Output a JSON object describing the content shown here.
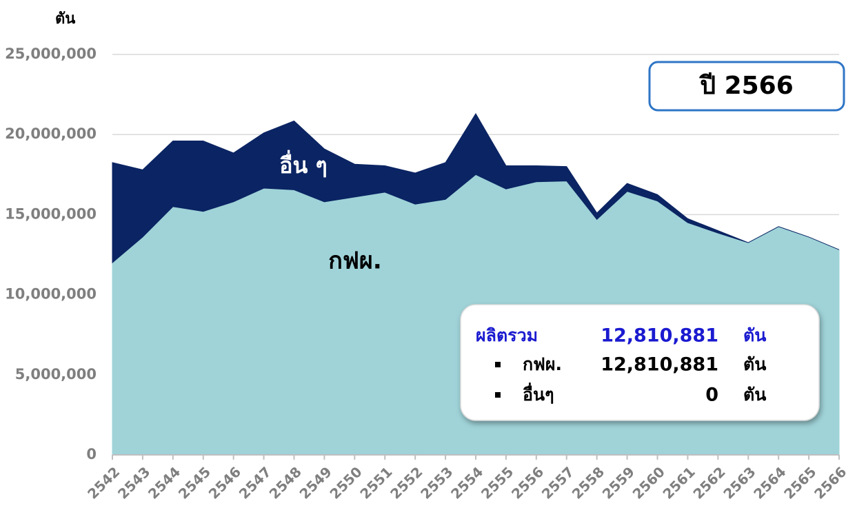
{
  "chart_data": {
    "type": "stacked_area",
    "y_axis_label": "ตัน",
    "categories": [
      "2542",
      "2543",
      "2544",
      "2545",
      "2546",
      "2547",
      "2548",
      "2549",
      "2550",
      "2551",
      "2552",
      "2553",
      "2554",
      "2555",
      "2556",
      "2557",
      "2558",
      "2559",
      "2560",
      "2561",
      "2562",
      "2563",
      "2564",
      "2565",
      "2566"
    ],
    "series": [
      {
        "name": "กฟผ.",
        "color": "#9fd3d8",
        "values": [
          12000000,
          13600000,
          15500000,
          15200000,
          15800000,
          16650000,
          16550000,
          15800000,
          16100000,
          16400000,
          15650000,
          15950000,
          17500000,
          16600000,
          17050000,
          17100000,
          14700000,
          16450000,
          15850000,
          14500000,
          13850000,
          13250000,
          14250000,
          13600000,
          12810881
        ]
      },
      {
        "name": "อื่น ๆ",
        "color": "#0b2463",
        "values": [
          6250000,
          4200000,
          4100000,
          4400000,
          3050000,
          3450000,
          4300000,
          3300000,
          2050000,
          1650000,
          1950000,
          2300000,
          3800000,
          1450000,
          1000000,
          900000,
          400000,
          500000,
          400000,
          250000,
          150000,
          0,
          0,
          0,
          0
        ]
      }
    ],
    "ylim": [
      0,
      25000000
    ],
    "yticks": [
      0,
      {
        "value": 5000000,
        "label": "5,000,000"
      },
      {
        "value": 10000000,
        "label": "10,000,000"
      },
      {
        "value": 15000000,
        "label": "15,000,000"
      },
      {
        "value": 20000000,
        "label": "20,000,000"
      },
      {
        "value": 25000000,
        "label": "25,000,000"
      }
    ],
    "grid": true,
    "year_label": "ปี 2566",
    "summary": {
      "unit": "ตัน",
      "total": {
        "label": "ผลิตรวม",
        "value": "12,810,881"
      },
      "items": [
        {
          "label": "กฟผ.",
          "value": "12,810,881"
        },
        {
          "label": "อื่นๆ",
          "value": "0"
        }
      ]
    }
  }
}
